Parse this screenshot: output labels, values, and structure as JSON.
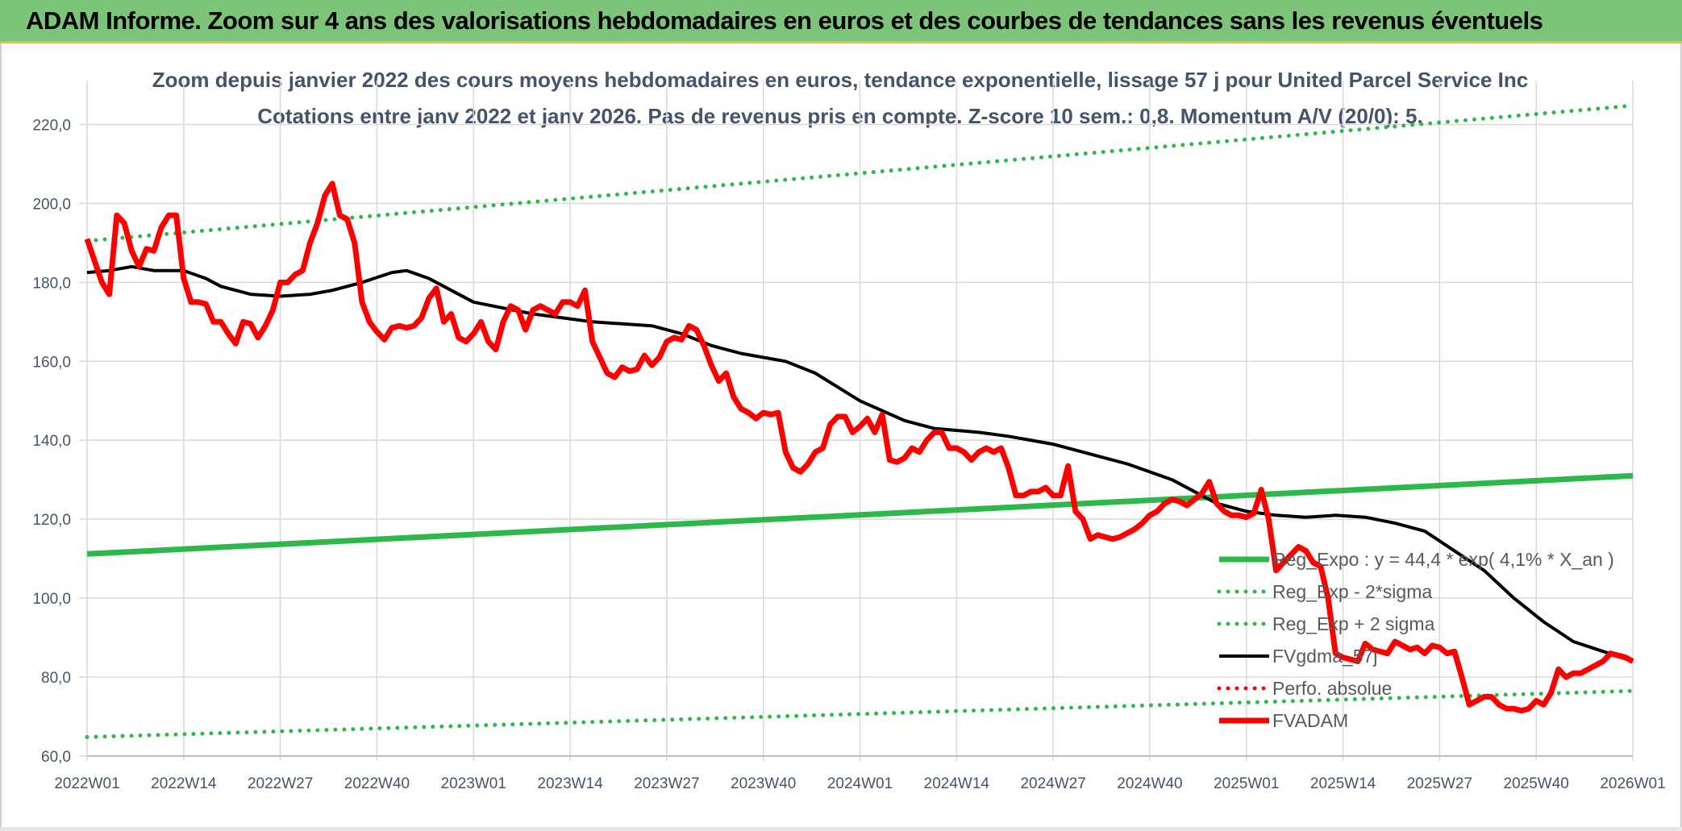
{
  "banner": {
    "title": "ADAM Informe. Zoom sur 4 ans des valorisations hebdomadaires en euros et des courbes de tendances sans les revenus éventuels"
  },
  "chart_data": {
    "type": "line",
    "title": "Zoom depuis janvier 2022 des cours moyens hebdomadaires en euros, tendance exponentielle, lissage 57 j pour United Parcel Service Inc",
    "subtitle": "Cotations entre janv 2022 et janv 2026. Pas de revenus pris en compte. Z-score 10 sem.: 0,8. Momentum A/V (20/0): 5.",
    "xlabel": "",
    "ylabel": "",
    "ylim": [
      60,
      225
    ],
    "yticks": [
      "60,0",
      "80,0",
      "100,0",
      "120,0",
      "140,0",
      "160,0",
      "180,0",
      "200,0",
      "220,0"
    ],
    "x_tick_labels": [
      "2022W01",
      "2022W14",
      "2022W27",
      "2022W40",
      "2023W01",
      "2023W14",
      "2023W27",
      "2023W40",
      "2024W01",
      "2024W14",
      "2024W27",
      "2024W40",
      "2025W01",
      "2025W14",
      "2025W27",
      "2025W40",
      "2026W01"
    ],
    "grid": true,
    "legend_position": "bottom-right",
    "colors": {
      "green": "#2db84a",
      "black": "#000000",
      "red": "#ff0000",
      "grid": "#d9d9d9"
    },
    "series": [
      {
        "name": "Reg_Expo : y = 44,4 * exp( 4,1% *  X_an )",
        "style": "solid-thick",
        "color": "#2db84a",
        "points": [
          [
            0,
            111.2
          ],
          [
            208,
            131.0
          ]
        ]
      },
      {
        "name": "Reg_Exp - 2*sigma",
        "style": "dotted",
        "color": "#2db84a",
        "points": [
          [
            0,
            64.8
          ],
          [
            208,
            76.5
          ]
        ]
      },
      {
        "name": "Reg_Exp + 2 sigma",
        "style": "dotted",
        "color": "#2db84a",
        "points": [
          [
            0,
            190.5
          ],
          [
            208,
            224.8
          ]
        ]
      },
      {
        "name": "FVgdma_57j",
        "style": "solid",
        "color": "#000000",
        "points": [
          [
            0,
            182.5
          ],
          [
            3,
            183
          ],
          [
            6,
            184
          ],
          [
            9,
            183
          ],
          [
            13,
            183
          ],
          [
            16,
            181
          ],
          [
            18,
            179
          ],
          [
            22,
            177
          ],
          [
            26,
            176.5
          ],
          [
            30,
            177
          ],
          [
            33,
            178
          ],
          [
            37,
            180
          ],
          [
            41,
            182.5
          ],
          [
            43,
            183
          ],
          [
            46,
            181
          ],
          [
            49,
            178
          ],
          [
            52,
            175
          ],
          [
            56,
            173.5
          ],
          [
            60,
            172
          ],
          [
            64,
            171
          ],
          [
            68,
            170
          ],
          [
            72,
            169.5
          ],
          [
            76,
            169
          ],
          [
            80,
            167
          ],
          [
            84,
            164
          ],
          [
            88,
            162
          ],
          [
            94,
            160
          ],
          [
            98,
            157
          ],
          [
            104,
            150
          ],
          [
            110,
            145
          ],
          [
            114,
            143
          ],
          [
            120,
            142
          ],
          [
            124,
            141
          ],
          [
            130,
            139
          ],
          [
            136,
            136
          ],
          [
            140,
            134
          ],
          [
            146,
            130
          ],
          [
            150,
            126
          ],
          [
            152,
            124
          ],
          [
            156,
            122
          ],
          [
            160,
            121
          ],
          [
            164,
            120.5
          ],
          [
            168,
            121
          ],
          [
            172,
            120.5
          ],
          [
            176,
            119
          ],
          [
            180,
            117
          ],
          [
            184,
            112
          ],
          [
            188,
            107
          ],
          [
            192,
            100
          ],
          [
            196,
            94
          ],
          [
            200,
            89
          ],
          [
            204,
            86.5
          ],
          [
            208,
            84
          ]
        ]
      },
      {
        "name": "Perfo. absolue",
        "style": "dotted",
        "color": "#ff0000",
        "points": []
      },
      {
        "name": "FVADAM",
        "style": "solid-thick",
        "color": "#ff0000",
        "points": [
          [
            0,
            191
          ],
          [
            2,
            180
          ],
          [
            3,
            177
          ],
          [
            4,
            197
          ],
          [
            5,
            195
          ],
          [
            6,
            188
          ],
          [
            7,
            184
          ],
          [
            8,
            188.5
          ],
          [
            9,
            188
          ],
          [
            10,
            194
          ],
          [
            11,
            197
          ],
          [
            12,
            197
          ],
          [
            13,
            181
          ],
          [
            14,
            175
          ],
          [
            15,
            175
          ],
          [
            16,
            174.5
          ],
          [
            17,
            170
          ],
          [
            18,
            170
          ],
          [
            19,
            167
          ],
          [
            20,
            164.5
          ],
          [
            21,
            170
          ],
          [
            22,
            169.5
          ],
          [
            23,
            166
          ],
          [
            24,
            169
          ],
          [
            25,
            173
          ],
          [
            26,
            180
          ],
          [
            27,
            180
          ],
          [
            28,
            182
          ],
          [
            29,
            183
          ],
          [
            30,
            190
          ],
          [
            31,
            195
          ],
          [
            32,
            202
          ],
          [
            33,
            205
          ],
          [
            34,
            197
          ],
          [
            35,
            196
          ],
          [
            36,
            190
          ],
          [
            37,
            175
          ],
          [
            38,
            170
          ],
          [
            39,
            167.5
          ],
          [
            40,
            165.5
          ],
          [
            41,
            168.5
          ],
          [
            42,
            169
          ],
          [
            43,
            168.5
          ],
          [
            44,
            169
          ],
          [
            45,
            171
          ],
          [
            46,
            176
          ],
          [
            47,
            178.5
          ],
          [
            48,
            170
          ],
          [
            49,
            172
          ],
          [
            50,
            166
          ],
          [
            51,
            165
          ],
          [
            52,
            167
          ],
          [
            53,
            170
          ],
          [
            54,
            165
          ],
          [
            55,
            163
          ],
          [
            56,
            170
          ],
          [
            57,
            174
          ],
          [
            58,
            173
          ],
          [
            59,
            168
          ],
          [
            60,
            173
          ],
          [
            61,
            174
          ],
          [
            62,
            173
          ],
          [
            63,
            172
          ],
          [
            64,
            175
          ],
          [
            65,
            175
          ],
          [
            66,
            174
          ],
          [
            67,
            178
          ],
          [
            68,
            165
          ],
          [
            69,
            161
          ],
          [
            70,
            157
          ],
          [
            71,
            156
          ],
          [
            72,
            158.5
          ],
          [
            73,
            157.5
          ],
          [
            74,
            158
          ],
          [
            75,
            161.5
          ],
          [
            76,
            159
          ],
          [
            77,
            161
          ],
          [
            78,
            165
          ],
          [
            79,
            166
          ],
          [
            80,
            165.5
          ],
          [
            81,
            169
          ],
          [
            82,
            168
          ],
          [
            83,
            164
          ],
          [
            84,
            159
          ],
          [
            85,
            155
          ],
          [
            86,
            157
          ],
          [
            87,
            151
          ],
          [
            88,
            148
          ],
          [
            89,
            147
          ],
          [
            90,
            145.5
          ],
          [
            91,
            147
          ],
          [
            92,
            146.5
          ],
          [
            93,
            147
          ],
          [
            94,
            137
          ],
          [
            95,
            133
          ],
          [
            96,
            132
          ],
          [
            97,
            134
          ],
          [
            98,
            137
          ],
          [
            99,
            138
          ],
          [
            100,
            144
          ],
          [
            101,
            146
          ],
          [
            102,
            146
          ],
          [
            103,
            142
          ],
          [
            104,
            143.5
          ],
          [
            105,
            145.5
          ],
          [
            106,
            142
          ],
          [
            107,
            146.5
          ],
          [
            108,
            135
          ],
          [
            109,
            134.5
          ],
          [
            110,
            135.5
          ],
          [
            111,
            138
          ],
          [
            112,
            137
          ],
          [
            113,
            140
          ],
          [
            114,
            142
          ],
          [
            115,
            142
          ],
          [
            116,
            138
          ],
          [
            117,
            138
          ],
          [
            118,
            137
          ],
          [
            119,
            135
          ],
          [
            120,
            137
          ],
          [
            121,
            138
          ],
          [
            122,
            137
          ],
          [
            123,
            138
          ],
          [
            124,
            133
          ],
          [
            125,
            126
          ],
          [
            126,
            126
          ],
          [
            127,
            127
          ],
          [
            128,
            127
          ],
          [
            129,
            128
          ],
          [
            130,
            126
          ],
          [
            131,
            126
          ],
          [
            132,
            133.5
          ],
          [
            133,
            122
          ],
          [
            134,
            120
          ],
          [
            135,
            115
          ],
          [
            136,
            116
          ],
          [
            137,
            115.5
          ],
          [
            138,
            115
          ],
          [
            139,
            115.5
          ],
          [
            140,
            116.5
          ],
          [
            141,
            117.5
          ],
          [
            142,
            119
          ],
          [
            143,
            121
          ],
          [
            144,
            122
          ],
          [
            145,
            124
          ],
          [
            146,
            125
          ],
          [
            147,
            124.5
          ],
          [
            148,
            123.5
          ],
          [
            149,
            125
          ],
          [
            150,
            126.5
          ],
          [
            151,
            129.5
          ],
          [
            152,
            124
          ],
          [
            153,
            122
          ],
          [
            154,
            121
          ],
          [
            155,
            121
          ],
          [
            156,
            120.5
          ],
          [
            157,
            121.5
          ],
          [
            158,
            127.5
          ],
          [
            159,
            120
          ],
          [
            160,
            107
          ],
          [
            161,
            109
          ],
          [
            162,
            111
          ],
          [
            163,
            113
          ],
          [
            164,
            112
          ],
          [
            165,
            109
          ],
          [
            166,
            108
          ],
          [
            167,
            100
          ],
          [
            168,
            86
          ],
          [
            169,
            85
          ],
          [
            170,
            84.5
          ],
          [
            171,
            84
          ],
          [
            172,
            88.5
          ],
          [
            173,
            87
          ],
          [
            174,
            86.5
          ],
          [
            175,
            86
          ],
          [
            176,
            89
          ],
          [
            177,
            88
          ],
          [
            178,
            87
          ],
          [
            179,
            87.5
          ],
          [
            180,
            86
          ],
          [
            181,
            88
          ],
          [
            182,
            87.5
          ],
          [
            183,
            86
          ],
          [
            184,
            86.5
          ],
          [
            185,
            80
          ],
          [
            186,
            73
          ],
          [
            187,
            74
          ],
          [
            188,
            75
          ],
          [
            189,
            75
          ],
          [
            190,
            73
          ],
          [
            191,
            72
          ],
          [
            192,
            72
          ],
          [
            193,
            71.5
          ],
          [
            194,
            72
          ],
          [
            195,
            74
          ],
          [
            196,
            73
          ],
          [
            197,
            76
          ],
          [
            198,
            82
          ],
          [
            199,
            80
          ],
          [
            200,
            81
          ],
          [
            201,
            81
          ],
          [
            202,
            82
          ],
          [
            203,
            83
          ],
          [
            204,
            84
          ],
          [
            205,
            86
          ],
          [
            206,
            85.5
          ],
          [
            207,
            85
          ],
          [
            208,
            84
          ]
        ]
      }
    ]
  }
}
